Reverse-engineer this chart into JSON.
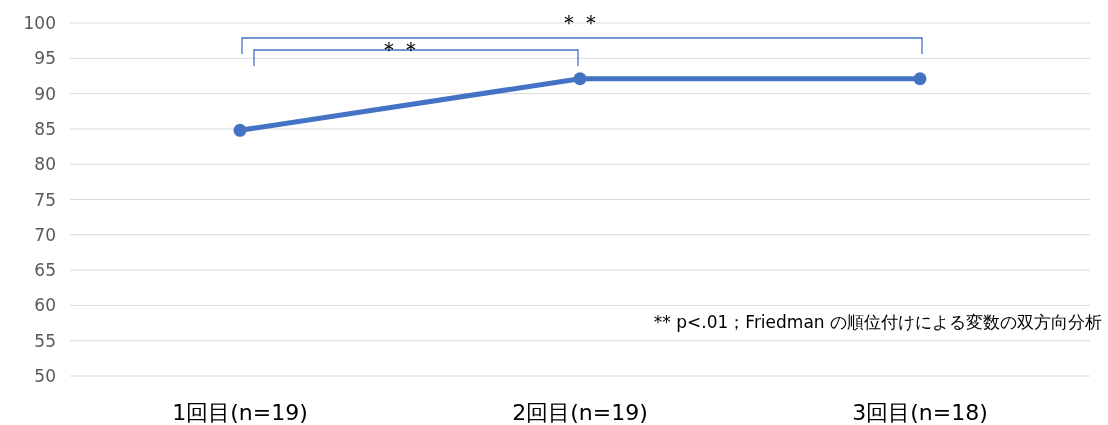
{
  "chart_data": {
    "type": "line",
    "categories": [
      "1回目(n=19)",
      "2回目(n=19)",
      "3回目(n=18)"
    ],
    "series": [
      {
        "color": "#4472c4",
        "values": [
          84.8,
          92.1,
          92.1
        ]
      }
    ],
    "ylim": [
      50,
      100
    ],
    "yticks": [
      50,
      55,
      60,
      65,
      70,
      75,
      80,
      85,
      90,
      95,
      100
    ],
    "grid": "y",
    "marker": "circle",
    "line_style": "solid",
    "annotations": [
      "＊＊",
      "＊＊",
      "** p<.01；Friedman の順位付けによる変数の双方向分析"
    ]
  }
}
